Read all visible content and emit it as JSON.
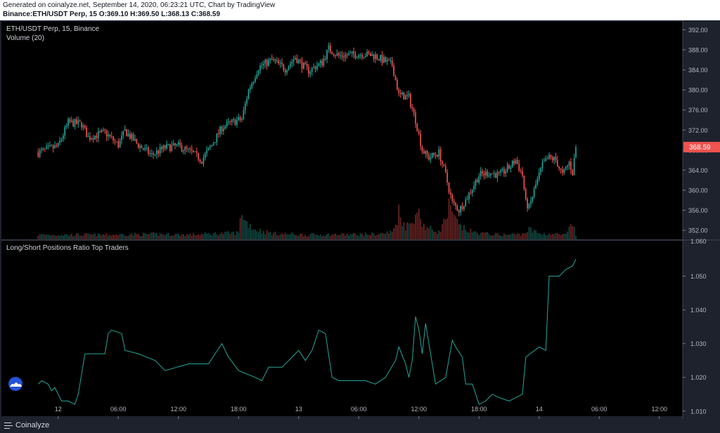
{
  "header": {
    "line1": "Generated on coinalyze.net, September 14, 2020, 06:23:21 UTC, Chart by TradingView",
    "line2": "Binance:ETH/USDT Perp, 15 O:369.10 H:369.50 L:368.13 C:368.59"
  },
  "footer": {
    "brand": "Coinalyze"
  },
  "colors": {
    "up": "#26a69a",
    "down": "#ef5350",
    "ratio_line": "#26a69a",
    "price_tag": "#ef5350"
  },
  "chart_data": [
    {
      "type": "candlestick",
      "legend": "ETH/USDT Perp, 15, Binance",
      "sublegend": "Volume (20)",
      "price_label": "368.59",
      "last_price": 368.59,
      "yticks": [
        "392.00",
        "388.00",
        "384.00",
        "380.00",
        "376.00",
        "372.00",
        "368.00",
        "364.00",
        "360.00",
        "356.00",
        "352.00"
      ],
      "ylim": [
        350.2,
        393.6
      ],
      "xticks": [
        {
          "label": "12",
          "t": 6
        },
        {
          "label": "06:00",
          "t": 24
        },
        {
          "label": "12:00",
          "t": 42
        },
        {
          "label": "18:00",
          "t": 60
        },
        {
          "label": "13",
          "t": 78
        },
        {
          "label": "06:00",
          "t": 96
        },
        {
          "label": "12:00",
          "t": 114
        },
        {
          "label": "18:00",
          "t": 132
        },
        {
          "label": "14",
          "t": 150
        },
        {
          "label": "06:00",
          "t": 168
        },
        {
          "label": "12:00",
          "t": 186
        }
      ],
      "xlim": [
        -11,
        193
      ],
      "price_keypoints": [
        [
          0,
          367.5
        ],
        [
          6,
          368.8
        ],
        [
          9,
          373.5
        ],
        [
          13,
          373.2
        ],
        [
          15,
          370.5
        ],
        [
          20,
          371.5
        ],
        [
          24,
          369.0
        ],
        [
          26,
          371.8
        ],
        [
          30,
          369.0
        ],
        [
          34,
          367.0
        ],
        [
          38,
          368.5
        ],
        [
          42,
          368.8
        ],
        [
          46,
          367.5
        ],
        [
          49,
          366.0
        ],
        [
          52,
          369.0
        ],
        [
          55,
          372.5
        ],
        [
          58,
          373.5
        ],
        [
          61,
          374.2
        ],
        [
          63,
          380.0
        ],
        [
          66,
          384.5
        ],
        [
          70,
          386.0
        ],
        [
          74,
          384.2
        ],
        [
          77,
          386.5
        ],
        [
          79,
          385.0
        ],
        [
          81,
          383.8
        ],
        [
          85,
          385.5
        ],
        [
          87,
          388.2
        ],
        [
          90,
          386.8
        ],
        [
          94,
          387.0
        ],
        [
          97,
          387.2
        ],
        [
          101,
          386.8
        ],
        [
          103,
          386.0
        ],
        [
          106,
          385.0
        ],
        [
          108,
          379.0
        ],
        [
          111,
          378.5
        ],
        [
          113,
          374.0
        ],
        [
          115,
          368.0
        ],
        [
          117,
          366.5
        ],
        [
          120,
          367.5
        ],
        [
          122,
          363.0
        ],
        [
          124,
          357.5
        ],
        [
          126,
          356.0
        ],
        [
          128,
          358.0
        ],
        [
          130,
          360.5
        ],
        [
          132,
          363.0
        ],
        [
          135,
          363.5
        ],
        [
          138,
          363.0
        ],
        [
          141,
          364.5
        ],
        [
          143,
          366.0
        ],
        [
          145,
          363.0
        ],
        [
          146,
          357.5
        ],
        [
          147,
          356.5
        ],
        [
          149,
          361.0
        ],
        [
          151,
          365.0
        ],
        [
          153,
          366.5
        ],
        [
          155,
          366.0
        ],
        [
          157,
          363.0
        ],
        [
          159,
          365.5
        ],
        [
          160,
          363.5
        ],
        [
          161,
          368.8
        ]
      ],
      "volume_keypoints": [
        [
          0,
          14
        ],
        [
          20,
          14
        ],
        [
          35,
          16
        ],
        [
          45,
          14
        ],
        [
          55,
          18
        ],
        [
          60,
          20
        ],
        [
          61,
          90
        ],
        [
          62,
          55
        ],
        [
          65,
          30
        ],
        [
          70,
          18
        ],
        [
          80,
          14
        ],
        [
          95,
          15
        ],
        [
          102,
          16
        ],
        [
          106,
          22
        ],
        [
          107,
          45
        ],
        [
          108,
          85
        ],
        [
          109,
          60
        ],
        [
          110,
          40
        ],
        [
          112,
          50
        ],
        [
          113,
          95
        ],
        [
          114,
          75
        ],
        [
          115,
          55
        ],
        [
          116,
          35
        ],
        [
          118,
          30
        ],
        [
          120,
          22
        ],
        [
          122,
          60
        ],
        [
          123,
          95
        ],
        [
          124,
          72
        ],
        [
          125,
          60
        ],
        [
          126,
          40
        ],
        [
          128,
          30
        ],
        [
          130,
          22
        ],
        [
          135,
          16
        ],
        [
          140,
          14
        ],
        [
          145,
          16
        ],
        [
          147,
          30
        ],
        [
          150,
          18
        ],
        [
          155,
          16
        ],
        [
          158,
          14
        ],
        [
          160,
          45
        ],
        [
          161,
          16
        ]
      ],
      "volume_scale_note": ""
    },
    {
      "type": "line",
      "legend": "Long/Short Positions Ratio Top Traders",
      "yticks": [
        "1.050",
        "1.040",
        "1.030",
        "1.020",
        "1.010"
      ],
      "top_partial_tick": "1.060",
      "ylim": [
        1.0085,
        1.0605
      ],
      "keypoints": [
        [
          0,
          1.018
        ],
        [
          1,
          1.019
        ],
        [
          3,
          1.018
        ],
        [
          4,
          1.016
        ],
        [
          5,
          1.017
        ],
        [
          6,
          1.015
        ],
        [
          7,
          1.013
        ],
        [
          9,
          1.013
        ],
        [
          11,
          1.012
        ],
        [
          12,
          1.015
        ],
        [
          14,
          1.027
        ],
        [
          20,
          1.027
        ],
        [
          21,
          1.033
        ],
        [
          22,
          1.034
        ],
        [
          25,
          1.033
        ],
        [
          26,
          1.028
        ],
        [
          30,
          1.027
        ],
        [
          35,
          1.025
        ],
        [
          38,
          1.022
        ],
        [
          45,
          1.024
        ],
        [
          51,
          1.024
        ],
        [
          53,
          1.027
        ],
        [
          55,
          1.03
        ],
        [
          57,
          1.026
        ],
        [
          60,
          1.022
        ],
        [
          65,
          1.02
        ],
        [
          67,
          1.019
        ],
        [
          69,
          1.023
        ],
        [
          73,
          1.023
        ],
        [
          76,
          1.026
        ],
        [
          78,
          1.028
        ],
        [
          80,
          1.025
        ],
        [
          82,
          1.028
        ],
        [
          84,
          1.034
        ],
        [
          86,
          1.033
        ],
        [
          88,
          1.02
        ],
        [
          90,
          1.019
        ],
        [
          98,
          1.019
        ],
        [
          101,
          1.018
        ],
        [
          104,
          1.02
        ],
        [
          107,
          1.025
        ],
        [
          108,
          1.029
        ],
        [
          110,
          1.024
        ],
        [
          111,
          1.02
        ],
        [
          112,
          1.025
        ],
        [
          113,
          1.038
        ],
        [
          114,
          1.034
        ],
        [
          115,
          1.027
        ],
        [
          116,
          1.036
        ],
        [
          117,
          1.03
        ],
        [
          119,
          1.018
        ],
        [
          122,
          1.02
        ],
        [
          124,
          1.031
        ],
        [
          125,
          1.029
        ],
        [
          127,
          1.026
        ],
        [
          128,
          1.018
        ],
        [
          130,
          1.018
        ],
        [
          132,
          1.012
        ],
        [
          134,
          1.013
        ],
        [
          136,
          1.015
        ],
        [
          138,
          1.014
        ],
        [
          141,
          1.013
        ],
        [
          143,
          1.014
        ],
        [
          145,
          1.015
        ],
        [
          146,
          1.026
        ],
        [
          150,
          1.029
        ],
        [
          152,
          1.028
        ],
        [
          153,
          1.05
        ],
        [
          156,
          1.05
        ],
        [
          158,
          1.052
        ],
        [
          160,
          1.053
        ],
        [
          161,
          1.055
        ]
      ]
    }
  ]
}
